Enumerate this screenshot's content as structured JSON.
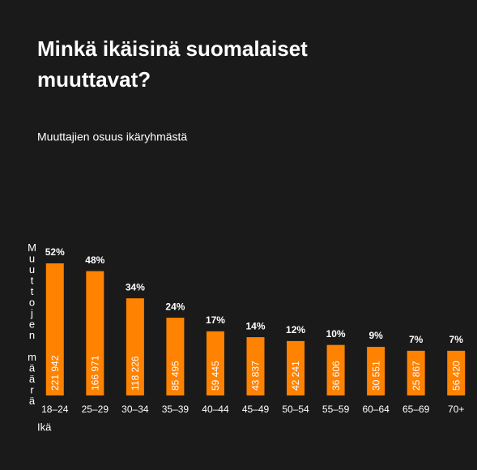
{
  "chart_data": {
    "type": "bar",
    "title": "Minkä ikäisinä suomalaiset muuttavat?",
    "subtitle": "Muuttajien osuus ikäryhmästä",
    "ylabel": "Muuttojen määrä",
    "xlabel": "Ikä",
    "categories": [
      "18–24",
      "25–29",
      "30–34",
      "35–39",
      "40–44",
      "45–49",
      "50–54",
      "55–59",
      "60–64",
      "65–69",
      "70+"
    ],
    "values": [
      52,
      48,
      34,
      24,
      17,
      14,
      12,
      10,
      9,
      7,
      7
    ],
    "value_labels": [
      "52%",
      "48%",
      "34%",
      "24%",
      "17%",
      "14%",
      "12%",
      "10%",
      "9%",
      "7%",
      "7%"
    ],
    "counts": [
      221942,
      166971,
      118226,
      85495,
      59445,
      43837,
      42241,
      36606,
      30551,
      25867,
      56420
    ],
    "count_labels": [
      "221 942",
      "166 971",
      "118 226",
      "85 495",
      "59 445",
      "43 837",
      "42 241",
      "36 606",
      "30 551",
      "25 867",
      "56 420"
    ],
    "color": "#ff8200",
    "ylim": [
      -16,
      52
    ]
  }
}
